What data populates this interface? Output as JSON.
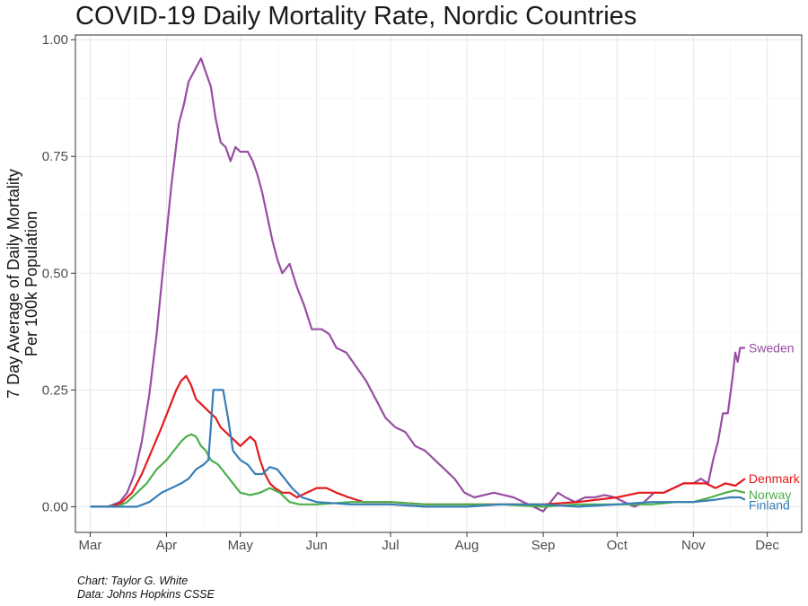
{
  "title": "COVID-19 Daily Mortality Rate, Nordic Countries",
  "caption_line1": "Chart: Taylor G. White",
  "caption_line2": "Data: Johns Hopkins CSSE",
  "chart_data": {
    "type": "line",
    "ylabel_line1": "7 Day Average of Daily Mortality",
    "ylabel_line2": "Per 100k Population",
    "xlabel": "",
    "x_ticks": [
      "Mar",
      "Apr",
      "May",
      "Jun",
      "Jul",
      "Aug",
      "Sep",
      "Oct",
      "Nov",
      "Dec"
    ],
    "y_ticks": [
      "0.00",
      "0.25",
      "0.50",
      "0.75",
      "1.00"
    ],
    "xlim": [
      "2020-02-24",
      "2020-12-15"
    ],
    "ylim": [
      -0.055,
      1.01
    ],
    "grid": true,
    "series": [
      {
        "name": "Sweden",
        "color": "#984ea3",
        "points": [
          [
            "2020-03-01",
            0.0
          ],
          [
            "2020-03-08",
            0.0
          ],
          [
            "2020-03-13",
            0.01
          ],
          [
            "2020-03-16",
            0.03
          ],
          [
            "2020-03-19",
            0.07
          ],
          [
            "2020-03-22",
            0.14
          ],
          [
            "2020-03-25",
            0.24
          ],
          [
            "2020-03-28",
            0.37
          ],
          [
            "2020-03-31",
            0.53
          ],
          [
            "2020-04-03",
            0.69
          ],
          [
            "2020-04-06",
            0.82
          ],
          [
            "2020-04-08",
            0.86
          ],
          [
            "2020-04-10",
            0.91
          ],
          [
            "2020-04-12",
            0.93
          ],
          [
            "2020-04-14",
            0.95
          ],
          [
            "2020-04-15",
            0.96
          ],
          [
            "2020-04-17",
            0.93
          ],
          [
            "2020-04-19",
            0.9
          ],
          [
            "2020-04-21",
            0.83
          ],
          [
            "2020-04-23",
            0.78
          ],
          [
            "2020-04-25",
            0.77
          ],
          [
            "2020-04-27",
            0.74
          ],
          [
            "2020-04-29",
            0.77
          ],
          [
            "2020-05-01",
            0.76
          ],
          [
            "2020-05-04",
            0.76
          ],
          [
            "2020-05-06",
            0.74
          ],
          [
            "2020-05-08",
            0.71
          ],
          [
            "2020-05-10",
            0.67
          ],
          [
            "2020-05-12",
            0.62
          ],
          [
            "2020-05-14",
            0.57
          ],
          [
            "2020-05-16",
            0.53
          ],
          [
            "2020-05-18",
            0.5
          ],
          [
            "2020-05-21",
            0.52
          ],
          [
            "2020-05-24",
            0.47
          ],
          [
            "2020-05-27",
            0.43
          ],
          [
            "2020-05-30",
            0.38
          ],
          [
            "2020-06-03",
            0.38
          ],
          [
            "2020-06-06",
            0.37
          ],
          [
            "2020-06-09",
            0.34
          ],
          [
            "2020-06-13",
            0.33
          ],
          [
            "2020-06-17",
            0.3
          ],
          [
            "2020-06-21",
            0.27
          ],
          [
            "2020-06-25",
            0.23
          ],
          [
            "2020-06-29",
            0.19
          ],
          [
            "2020-07-03",
            0.17
          ],
          [
            "2020-07-07",
            0.16
          ],
          [
            "2020-07-11",
            0.13
          ],
          [
            "2020-07-15",
            0.12
          ],
          [
            "2020-07-19",
            0.1
          ],
          [
            "2020-07-23",
            0.08
          ],
          [
            "2020-07-27",
            0.06
          ],
          [
            "2020-07-31",
            0.03
          ],
          [
            "2020-08-04",
            0.02
          ],
          [
            "2020-08-08",
            0.025
          ],
          [
            "2020-08-12",
            0.03
          ],
          [
            "2020-08-16",
            0.025
          ],
          [
            "2020-08-20",
            0.02
          ],
          [
            "2020-08-24",
            0.01
          ],
          [
            "2020-08-28",
            0.0
          ],
          [
            "2020-09-01",
            -0.01
          ],
          [
            "2020-09-04",
            0.01
          ],
          [
            "2020-09-07",
            0.03
          ],
          [
            "2020-09-10",
            0.02
          ],
          [
            "2020-09-14",
            0.01
          ],
          [
            "2020-09-18",
            0.02
          ],
          [
            "2020-09-22",
            0.02
          ],
          [
            "2020-09-26",
            0.025
          ],
          [
            "2020-09-30",
            0.02
          ],
          [
            "2020-10-04",
            0.01
          ],
          [
            "2020-10-08",
            0.0
          ],
          [
            "2020-10-12",
            0.01
          ],
          [
            "2020-10-16",
            0.03
          ],
          [
            "2020-10-20",
            0.03
          ],
          [
            "2020-10-24",
            0.04
          ],
          [
            "2020-10-28",
            0.05
          ],
          [
            "2020-11-01",
            0.05
          ],
          [
            "2020-11-04",
            0.06
          ],
          [
            "2020-11-07",
            0.05
          ],
          [
            "2020-11-09",
            0.1
          ],
          [
            "2020-11-11",
            0.14
          ],
          [
            "2020-11-13",
            0.2
          ],
          [
            "2020-11-15",
            0.2
          ],
          [
            "2020-11-17",
            0.28
          ],
          [
            "2020-11-18",
            0.33
          ],
          [
            "2020-11-19",
            0.31
          ],
          [
            "2020-11-20",
            0.34
          ],
          [
            "2020-11-22",
            0.34
          ]
        ]
      },
      {
        "name": "Denmark",
        "color": "#e41a1c",
        "points": [
          [
            "2020-03-01",
            0.0
          ],
          [
            "2020-03-10",
            0.0
          ],
          [
            "2020-03-14",
            0.01
          ],
          [
            "2020-03-18",
            0.03
          ],
          [
            "2020-03-22",
            0.07
          ],
          [
            "2020-03-26",
            0.12
          ],
          [
            "2020-03-30",
            0.17
          ],
          [
            "2020-04-02",
            0.21
          ],
          [
            "2020-04-05",
            0.25
          ],
          [
            "2020-04-07",
            0.27
          ],
          [
            "2020-04-09",
            0.28
          ],
          [
            "2020-04-11",
            0.26
          ],
          [
            "2020-04-13",
            0.23
          ],
          [
            "2020-04-15",
            0.22
          ],
          [
            "2020-04-17",
            0.21
          ],
          [
            "2020-04-19",
            0.2
          ],
          [
            "2020-04-21",
            0.19
          ],
          [
            "2020-04-23",
            0.17
          ],
          [
            "2020-04-25",
            0.16
          ],
          [
            "2020-04-27",
            0.15
          ],
          [
            "2020-04-29",
            0.14
          ],
          [
            "2020-05-01",
            0.13
          ],
          [
            "2020-05-03",
            0.14
          ],
          [
            "2020-05-05",
            0.15
          ],
          [
            "2020-05-07",
            0.14
          ],
          [
            "2020-05-09",
            0.1
          ],
          [
            "2020-05-11",
            0.07
          ],
          [
            "2020-05-13",
            0.05
          ],
          [
            "2020-05-15",
            0.04
          ],
          [
            "2020-05-18",
            0.03
          ],
          [
            "2020-05-21",
            0.03
          ],
          [
            "2020-05-24",
            0.02
          ],
          [
            "2020-05-28",
            0.03
          ],
          [
            "2020-06-01",
            0.04
          ],
          [
            "2020-06-05",
            0.04
          ],
          [
            "2020-06-09",
            0.03
          ],
          [
            "2020-06-14",
            0.02
          ],
          [
            "2020-06-20",
            0.01
          ],
          [
            "2020-07-01",
            0.01
          ],
          [
            "2020-07-15",
            0.005
          ],
          [
            "2020-08-01",
            0.005
          ],
          [
            "2020-08-15",
            0.005
          ],
          [
            "2020-09-01",
            0.005
          ],
          [
            "2020-09-15",
            0.01
          ],
          [
            "2020-10-01",
            0.02
          ],
          [
            "2020-10-10",
            0.03
          ],
          [
            "2020-10-20",
            0.03
          ],
          [
            "2020-10-28",
            0.05
          ],
          [
            "2020-11-02",
            0.05
          ],
          [
            "2020-11-06",
            0.05
          ],
          [
            "2020-11-10",
            0.04
          ],
          [
            "2020-11-14",
            0.05
          ],
          [
            "2020-11-18",
            0.045
          ],
          [
            "2020-11-22",
            0.06
          ]
        ]
      },
      {
        "name": "Norway",
        "color": "#4daf4a",
        "points": [
          [
            "2020-03-01",
            0.0
          ],
          [
            "2020-03-12",
            0.0
          ],
          [
            "2020-03-16",
            0.01
          ],
          [
            "2020-03-20",
            0.03
          ],
          [
            "2020-03-24",
            0.05
          ],
          [
            "2020-03-28",
            0.08
          ],
          [
            "2020-04-01",
            0.1
          ],
          [
            "2020-04-04",
            0.12
          ],
          [
            "2020-04-07",
            0.14
          ],
          [
            "2020-04-09",
            0.15
          ],
          [
            "2020-04-11",
            0.155
          ],
          [
            "2020-04-13",
            0.15
          ],
          [
            "2020-04-15",
            0.13
          ],
          [
            "2020-04-17",
            0.12
          ],
          [
            "2020-04-19",
            0.1
          ],
          [
            "2020-04-22",
            0.09
          ],
          [
            "2020-04-25",
            0.07
          ],
          [
            "2020-04-28",
            0.05
          ],
          [
            "2020-05-01",
            0.03
          ],
          [
            "2020-05-05",
            0.025
          ],
          [
            "2020-05-09",
            0.03
          ],
          [
            "2020-05-13",
            0.04
          ],
          [
            "2020-05-17",
            0.03
          ],
          [
            "2020-05-21",
            0.01
          ],
          [
            "2020-05-25",
            0.005
          ],
          [
            "2020-06-01",
            0.005
          ],
          [
            "2020-06-15",
            0.01
          ],
          [
            "2020-07-01",
            0.01
          ],
          [
            "2020-07-15",
            0.005
          ],
          [
            "2020-08-01",
            0.005
          ],
          [
            "2020-08-15",
            0.005
          ],
          [
            "2020-09-01",
            0.0
          ],
          [
            "2020-09-15",
            0.005
          ],
          [
            "2020-10-01",
            0.005
          ],
          [
            "2020-10-15",
            0.005
          ],
          [
            "2020-10-25",
            0.01
          ],
          [
            "2020-11-01",
            0.01
          ],
          [
            "2020-11-08",
            0.02
          ],
          [
            "2020-11-14",
            0.03
          ],
          [
            "2020-11-18",
            0.035
          ],
          [
            "2020-11-22",
            0.03
          ]
        ]
      },
      {
        "name": "Finland",
        "color": "#377eb8",
        "points": [
          [
            "2020-03-01",
            0.0
          ],
          [
            "2020-03-20",
            0.0
          ],
          [
            "2020-03-25",
            0.01
          ],
          [
            "2020-03-30",
            0.03
          ],
          [
            "2020-04-03",
            0.04
          ],
          [
            "2020-04-07",
            0.05
          ],
          [
            "2020-04-10",
            0.06
          ],
          [
            "2020-04-13",
            0.08
          ],
          [
            "2020-04-16",
            0.09
          ],
          [
            "2020-04-18",
            0.1
          ],
          [
            "2020-04-19",
            0.17
          ],
          [
            "2020-04-20",
            0.25
          ],
          [
            "2020-04-24",
            0.25
          ],
          [
            "2020-04-26",
            0.19
          ],
          [
            "2020-04-28",
            0.12
          ],
          [
            "2020-05-01",
            0.1
          ],
          [
            "2020-05-04",
            0.09
          ],
          [
            "2020-05-07",
            0.07
          ],
          [
            "2020-05-10",
            0.07
          ],
          [
            "2020-05-13",
            0.085
          ],
          [
            "2020-05-16",
            0.08
          ],
          [
            "2020-05-19",
            0.06
          ],
          [
            "2020-05-22",
            0.04
          ],
          [
            "2020-05-26",
            0.02
          ],
          [
            "2020-06-01",
            0.01
          ],
          [
            "2020-06-15",
            0.005
          ],
          [
            "2020-07-01",
            0.005
          ],
          [
            "2020-07-15",
            0.0
          ],
          [
            "2020-08-01",
            0.0
          ],
          [
            "2020-08-15",
            0.005
          ],
          [
            "2020-09-01",
            0.005
          ],
          [
            "2020-09-15",
            0.0
          ],
          [
            "2020-10-01",
            0.005
          ],
          [
            "2020-10-15",
            0.01
          ],
          [
            "2020-11-01",
            0.01
          ],
          [
            "2020-11-10",
            0.015
          ],
          [
            "2020-11-16",
            0.02
          ],
          [
            "2020-11-20",
            0.02
          ],
          [
            "2020-11-22",
            0.015
          ]
        ]
      }
    ]
  }
}
